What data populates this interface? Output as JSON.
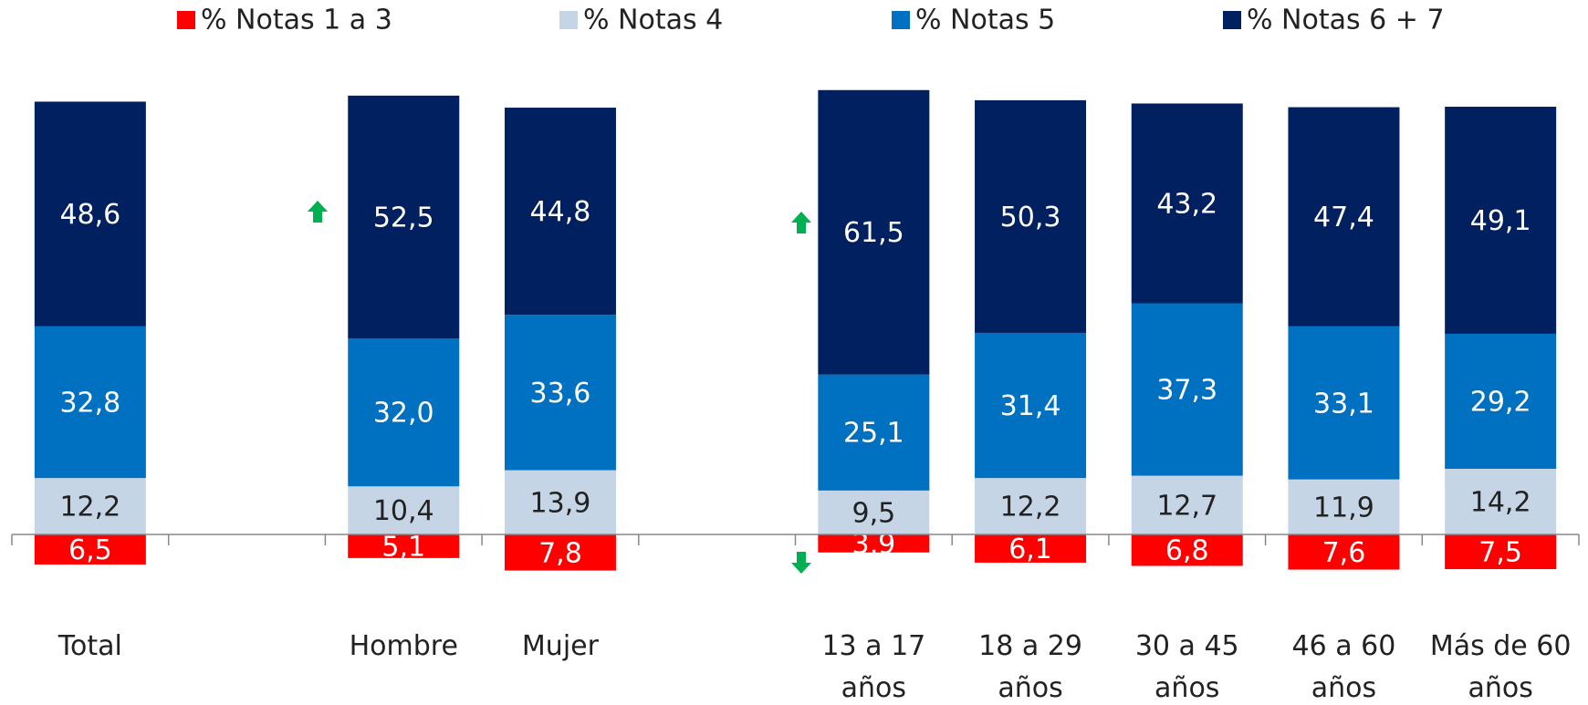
{
  "chart_data": {
    "type": "diverging_stacked_bar",
    "categories": [
      "Total",
      null,
      "Hombre",
      "Mujer",
      null,
      "13 a 17 años",
      "18 a 29 años",
      "30 a 45 años",
      "46 a 60 años",
      "Más de 60 años"
    ],
    "series": [
      {
        "name": "% Notas 1 a 3",
        "color": "#ff0000",
        "values": [
          6.5,
          null,
          5.1,
          7.8,
          null,
          3.9,
          6.1,
          6.8,
          7.6,
          7.5
        ],
        "value_labels": [
          "6,5",
          null,
          "5,1",
          "7,8",
          null,
          "3,9",
          "6,1",
          "6,8",
          "7,6",
          "7,5"
        ]
      },
      {
        "name": "% Notas 4",
        "color": "#c5d5e6",
        "values": [
          12.2,
          null,
          10.4,
          13.9,
          null,
          9.5,
          12.2,
          12.7,
          11.9,
          14.2
        ],
        "value_labels": [
          "12,2",
          null,
          "10,4",
          "13,9",
          null,
          "9,5",
          "12,2",
          "12,7",
          "11,9",
          "14,2"
        ]
      },
      {
        "name": "% Notas 5",
        "color": "#0070c0",
        "values": [
          32.8,
          null,
          32.0,
          33.6,
          null,
          25.1,
          31.4,
          37.3,
          33.1,
          29.2
        ],
        "value_labels": [
          "32,8",
          null,
          "32,0",
          "33,6",
          null,
          "25,1",
          "31,4",
          "37,3",
          "33,1",
          "29,2"
        ]
      },
      {
        "name": "% Notas 6 + 7",
        "color": "#002060",
        "values": [
          48.6,
          null,
          52.5,
          44.8,
          null,
          61.5,
          50.3,
          43.2,
          47.4,
          49.1
        ],
        "value_labels": [
          "48,6",
          null,
          "52,5",
          "44,8",
          null,
          "61,5",
          "50,3",
          "43,2",
          "47,4",
          "49,1"
        ]
      }
    ],
    "legend": "top"
  }
}
